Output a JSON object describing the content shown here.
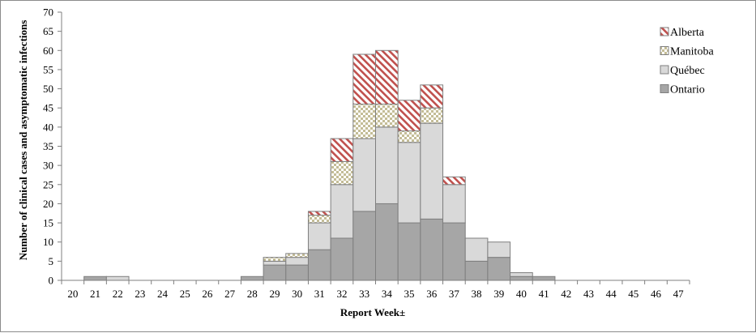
{
  "chart_data": {
    "type": "bar",
    "stacked": true,
    "categories": [
      "20",
      "21",
      "22",
      "23",
      "24",
      "25",
      "26",
      "27",
      "28",
      "29",
      "30",
      "31",
      "32",
      "33",
      "34",
      "35",
      "36",
      "37",
      "38",
      "39",
      "40",
      "41",
      "42",
      "43",
      "44",
      "45",
      "46",
      "47"
    ],
    "series": [
      {
        "name": "Ontario",
        "pattern": "solid-dark",
        "color": "#a6a6a6",
        "values": [
          0,
          1,
          0,
          0,
          0,
          0,
          0,
          0,
          1,
          4,
          4,
          8,
          11,
          18,
          20,
          15,
          16,
          15,
          5,
          6,
          1,
          1,
          0,
          0,
          0,
          0,
          0,
          0
        ]
      },
      {
        "name": "Québec",
        "pattern": "solid-light",
        "color": "#d9d9d9",
        "values": [
          0,
          0,
          1,
          0,
          0,
          0,
          0,
          0,
          0,
          1,
          2,
          7,
          14,
          19,
          20,
          21,
          25,
          10,
          6,
          4,
          1,
          0,
          0,
          0,
          0,
          0,
          0,
          0
        ]
      },
      {
        "name": "Manitoba",
        "pattern": "checker",
        "color": "#c4bd97",
        "values": [
          0,
          0,
          0,
          0,
          0,
          0,
          0,
          0,
          0,
          1,
          1,
          2,
          6,
          9,
          6,
          3,
          4,
          0,
          0,
          0,
          0,
          0,
          0,
          0,
          0,
          0,
          0,
          0
        ]
      },
      {
        "name": "Alberta",
        "pattern": "diagonal",
        "color": "#c0504d",
        "values": [
          0,
          0,
          0,
          0,
          0,
          0,
          0,
          0,
          0,
          0,
          0,
          1,
          6,
          13,
          14,
          8,
          6,
          2,
          0,
          0,
          0,
          0,
          0,
          0,
          0,
          0,
          0,
          0
        ]
      }
    ],
    "xlabel": "Report Week±",
    "ylabel": "Number of clinical cases and asymptomatic infections",
    "ylim": [
      0,
      70
    ],
    "yticks": [
      0,
      5,
      10,
      15,
      20,
      25,
      30,
      35,
      40,
      45,
      50,
      55,
      60,
      65,
      70
    ],
    "grid": false,
    "legend_position": "top-right",
    "legend_order": [
      "Alberta",
      "Manitoba",
      "Québec",
      "Ontario"
    ]
  }
}
